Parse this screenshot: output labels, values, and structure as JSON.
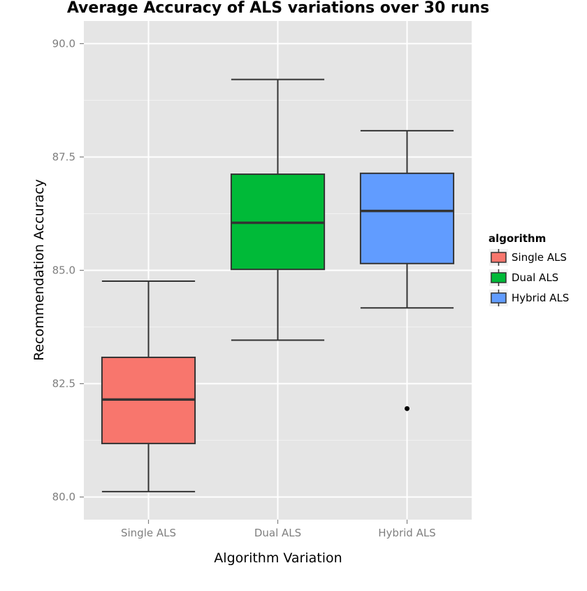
{
  "chart_data": {
    "type": "boxplot",
    "title": "Average Accuracy of ALS variations over 30 runs",
    "xlabel": "Algorithm Variation",
    "ylabel": "Recommendation Accuracy",
    "categories": [
      "Single ALS",
      "Dual ALS",
      "Hybrid ALS"
    ],
    "y_ticks": [
      80.0,
      82.5,
      85.0,
      87.5,
      90.0
    ],
    "y_tick_labels": [
      "80.0",
      "82.5",
      "85.0",
      "87.5",
      "90.0"
    ],
    "ylim": [
      79.5,
      90.5
    ],
    "grid": true,
    "legend": {
      "title": "algorithm",
      "placement": "right",
      "entries": [
        "Single ALS",
        "Dual ALS",
        "Hybrid ALS"
      ]
    },
    "colors": {
      "Single ALS": "#F8766D",
      "Dual ALS": "#00BA38",
      "Hybrid ALS": "#619CFF",
      "panel_bg": "#E5E5E5",
      "grid_major": "#FFFFFF",
      "grid_minor": "#F2F2F2",
      "box_stroke": "#333333"
    },
    "series": [
      {
        "category": "Single ALS",
        "whisker_low": 80.12,
        "q1": 81.18,
        "median": 82.15,
        "q3": 83.08,
        "whisker_high": 84.76,
        "outliers": []
      },
      {
        "category": "Dual ALS",
        "whisker_low": 83.46,
        "q1": 85.02,
        "median": 86.05,
        "q3": 87.12,
        "whisker_high": 89.21,
        "outliers": []
      },
      {
        "category": "Hybrid ALS",
        "whisker_low": 84.17,
        "q1": 85.15,
        "median": 86.31,
        "q3": 87.14,
        "whisker_high": 88.08,
        "outliers": [
          81.95
        ]
      }
    ]
  }
}
